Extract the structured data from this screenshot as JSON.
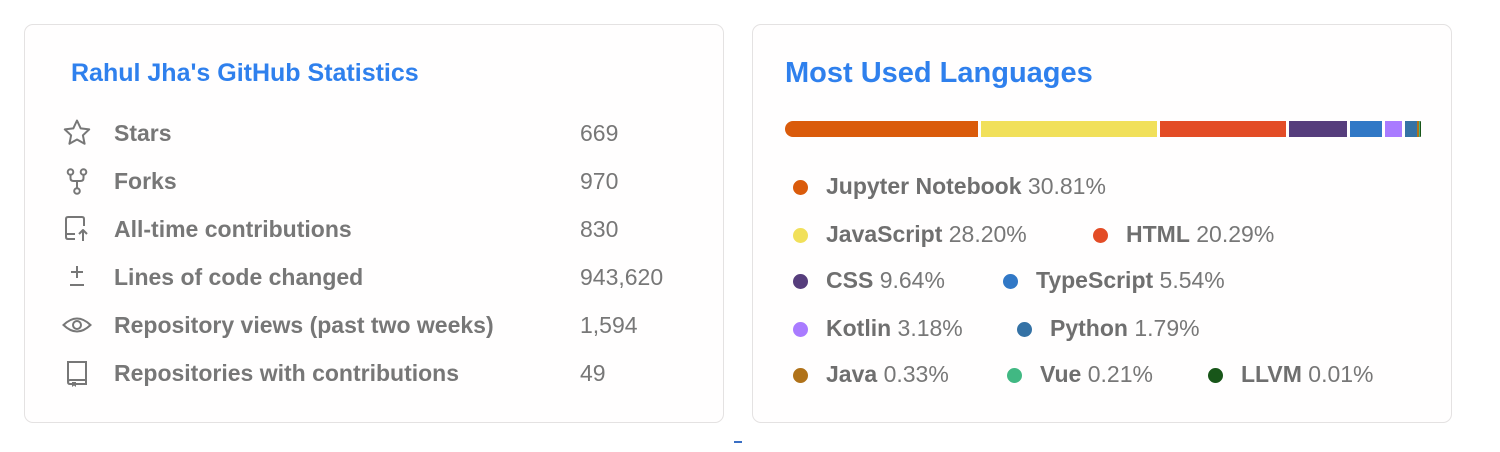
{
  "stats": {
    "title": "Rahul Jha's GitHub Statistics",
    "rows": [
      {
        "icon": "star-icon",
        "label": "Stars",
        "value": "669"
      },
      {
        "icon": "fork-icon",
        "label": "Forks",
        "value": "970"
      },
      {
        "icon": "commit-upload-icon",
        "label": "All-time contributions",
        "value": "830"
      },
      {
        "icon": "plus-minus-icon",
        "label": "Lines of code changed",
        "value": "943,620"
      },
      {
        "icon": "eye-icon",
        "label": "Repository views (past two weeks)",
        "value": "1,594"
      },
      {
        "icon": "repo-icon",
        "label": "Repositories with contributions",
        "value": "49"
      }
    ],
    "colors": {
      "title": "#2f80ed",
      "text": "#777777",
      "icon": "#777777"
    }
  },
  "languages": {
    "title": "Most Used Languages",
    "items": [
      {
        "name": "Jupyter Notebook",
        "percent": "30.81%",
        "share": 30.81,
        "color": "#DA5B0B"
      },
      {
        "name": "JavaScript",
        "percent": "28.20%",
        "share": 28.2,
        "color": "#F1E05A"
      },
      {
        "name": "HTML",
        "percent": "20.29%",
        "share": 20.29,
        "color": "#E34C26"
      },
      {
        "name": "CSS",
        "percent": "9.64%",
        "share": 9.64,
        "color": "#563D7C"
      },
      {
        "name": "TypeScript",
        "percent": "5.54%",
        "share": 5.54,
        "color": "#3178C6"
      },
      {
        "name": "Kotlin",
        "percent": "3.18%",
        "share": 3.18,
        "color": "#A97BFF"
      },
      {
        "name": "Python",
        "percent": "1.79%",
        "share": 1.79,
        "color": "#3572A5"
      },
      {
        "name": "Java",
        "percent": "0.33%",
        "share": 0.33,
        "color": "#B07219"
      },
      {
        "name": "Vue",
        "percent": "0.21%",
        "share": 0.21,
        "color": "#41B883"
      },
      {
        "name": "LLVM",
        "percent": "0.01%",
        "share": 0.01,
        "color": "#185619"
      }
    ]
  }
}
